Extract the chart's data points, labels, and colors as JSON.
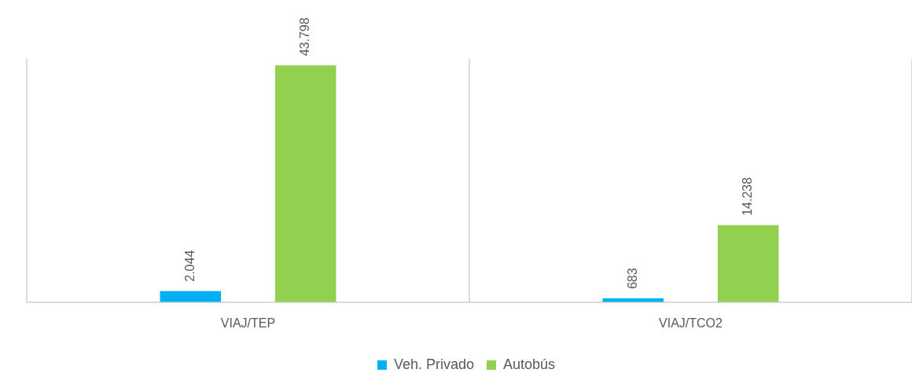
{
  "chart_data": {
    "type": "bar",
    "categories": [
      "VIAJ/TEP",
      "VIAJ/TCO2"
    ],
    "series": [
      {
        "name": "Veh. Privado",
        "color": "#00b0f0",
        "values": [
          2044,
          683
        ],
        "value_labels": [
          "2.044",
          "683"
        ]
      },
      {
        "name": "Autobús",
        "color": "#92d050",
        "values": [
          43798,
          14238
        ],
        "value_labels": [
          "43.798",
          "14.238"
        ]
      }
    ],
    "relative": false,
    "grid": "x",
    "legend": "bottom"
  }
}
